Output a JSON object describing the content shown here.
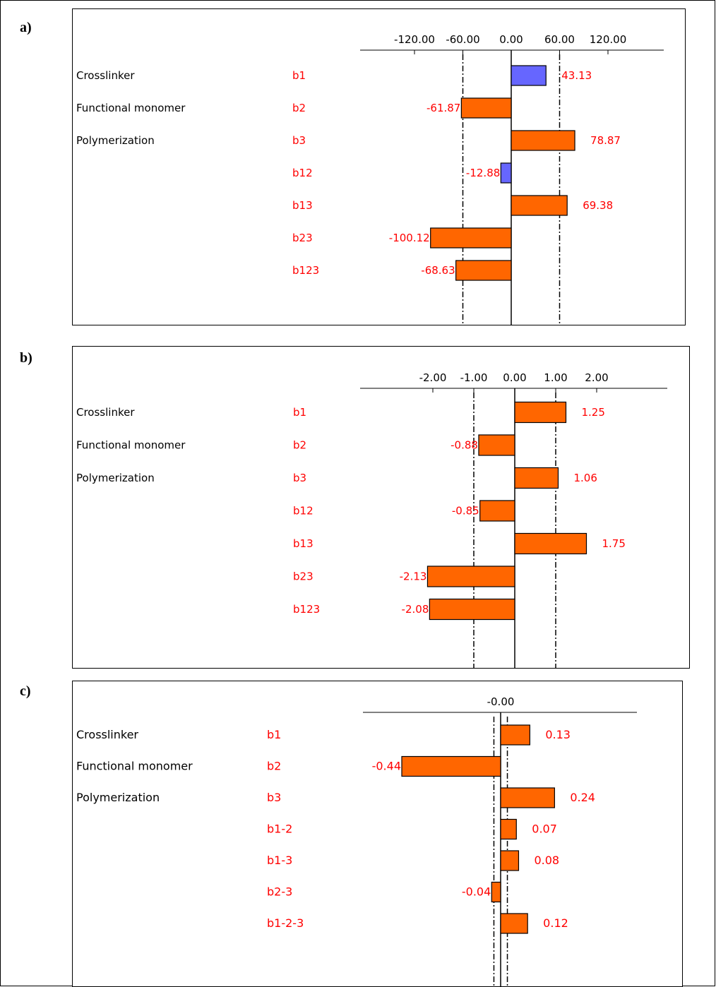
{
  "panels": [
    {
      "label": "a)",
      "chart_data": {
        "type": "bar",
        "orientation": "horizontal",
        "xlim": [
          -120,
          120
        ],
        "ticks": [
          -120,
          -60,
          0,
          60,
          120
        ],
        "tick_labels": [
          "-120.00",
          "-60.00",
          "0.00",
          "60.00",
          "120.00"
        ],
        "reference_lines": [
          -60,
          60
        ],
        "factors": [
          "Crosslinker",
          "Functional monomer",
          "Polymerization",
          "",
          "",
          "",
          ""
        ],
        "categories": [
          "b1",
          "b2",
          "b3",
          "b12",
          "b13",
          "b23",
          "b123"
        ],
        "values": [
          43.13,
          -61.87,
          78.87,
          -12.88,
          69.38,
          -100.12,
          -68.63
        ],
        "value_labels": [
          "43.13",
          "-61.87",
          "78.87",
          "-12.88",
          "69.38",
          "-100.12",
          "-68.63"
        ],
        "bar_colors": [
          "#6666ff",
          "#ff6600",
          "#ff6600",
          "#6666ff",
          "#ff6600",
          "#ff6600",
          "#ff6600"
        ]
      }
    },
    {
      "label": "b)",
      "chart_data": {
        "type": "bar",
        "orientation": "horizontal",
        "xlim": [
          -2,
          2
        ],
        "ticks": [
          -2,
          -1,
          0,
          1,
          2
        ],
        "tick_labels": [
          "-2.00",
          "-1.00",
          "0.00",
          "1.00",
          "2.00"
        ],
        "reference_lines": [
          -1,
          1
        ],
        "factors": [
          "Crosslinker",
          "Functional monomer",
          "Polymerization",
          "",
          "",
          "",
          ""
        ],
        "categories": [
          "b1",
          "b2",
          "b3",
          "b12",
          "b13",
          "b23",
          "b123"
        ],
        "values": [
          1.25,
          -0.88,
          1.06,
          -0.85,
          1.75,
          -2.13,
          -2.08
        ],
        "value_labels": [
          "1.25",
          "-0.88",
          "1.06",
          "-0.85",
          "1.75",
          "-2.13",
          "-2.08"
        ],
        "bar_colors": [
          "#ff6600",
          "#ff6600",
          "#ff6600",
          "#ff6600",
          "#ff6600",
          "#ff6600",
          "#ff6600"
        ]
      }
    },
    {
      "label": "c)",
      "chart_data": {
        "type": "bar",
        "orientation": "horizontal",
        "xlim": [
          -0.44,
          0.44
        ],
        "ticks": [
          0
        ],
        "tick_labels": [
          "-0.00"
        ],
        "reference_lines": [
          -0.03,
          0.03
        ],
        "factors": [
          "Crosslinker",
          "Functional monomer",
          "Polymerization",
          "",
          "",
          "",
          ""
        ],
        "categories": [
          "b1",
          "b2",
          "b3",
          "b1-2",
          "b1-3",
          "b2-3",
          "b1-2-3"
        ],
        "values": [
          0.13,
          -0.44,
          0.24,
          0.07,
          0.08,
          -0.04,
          0.12
        ],
        "value_labels": [
          "0.13",
          "-0.44",
          "0.24",
          "0.07",
          "0.08",
          "-0.04",
          "0.12"
        ],
        "bar_colors": [
          "#ff6600",
          "#ff6600",
          "#ff6600",
          "#ff6600",
          "#ff6600",
          "#ff6600",
          "#ff6600"
        ]
      }
    }
  ]
}
